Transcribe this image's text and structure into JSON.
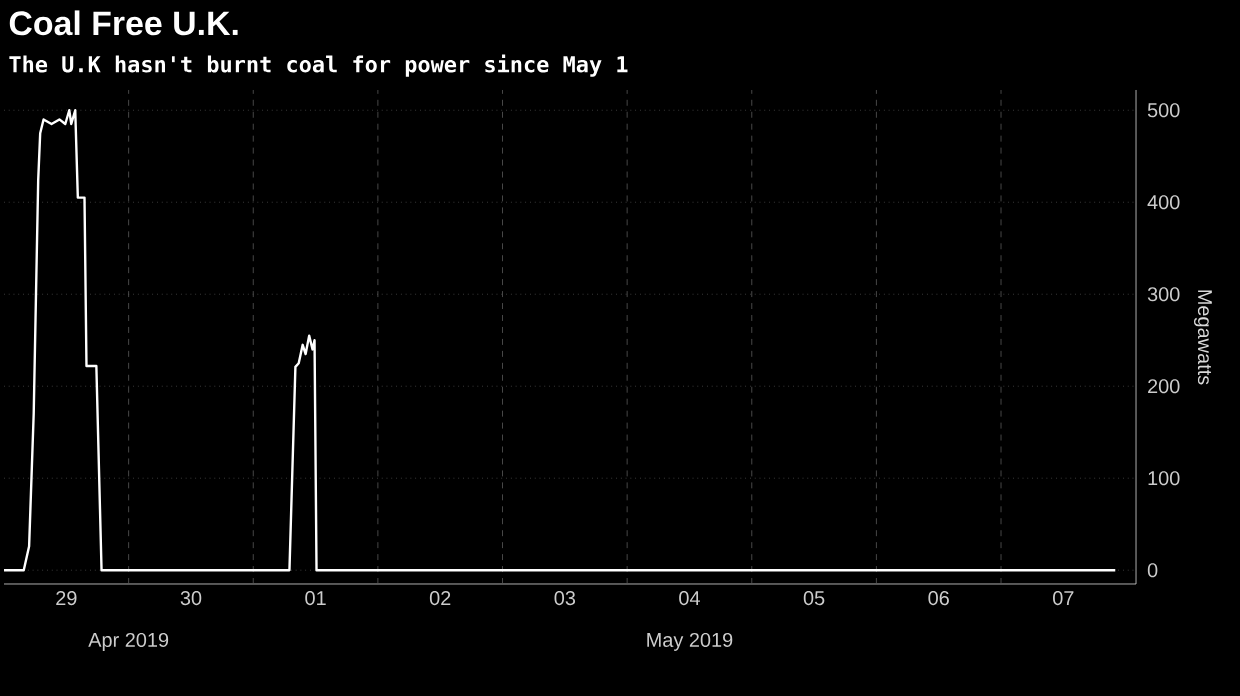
{
  "chart_data": {
    "type": "line",
    "title": "Coal Free U.K.",
    "subtitle": "The U.K hasn't burnt coal for power since May 1",
    "ylabel": "Megawatts",
    "x": [
      "2019-04-29T00:00",
      "2019-04-29T03:48",
      "2019-04-29T04:50",
      "2019-04-29T05:43",
      "2019-04-29T06:35",
      "2019-04-29T06:58",
      "2019-04-29T07:37",
      "2019-04-29T09:09",
      "2019-04-29T10:40",
      "2019-04-29T11:48",
      "2019-04-29T12:34",
      "2019-04-29T12:57",
      "2019-04-29T13:43",
      "2019-04-29T14:13",
      "2019-04-29T15:30",
      "2019-04-29T15:53",
      "2019-04-29T17:47",
      "2019-04-29T18:47",
      "2019-05-01T06:58",
      "2019-05-01T08:07",
      "2019-05-01T08:45",
      "2019-05-01T09:31",
      "2019-05-01T10:05",
      "2019-05-01T10:46",
      "2019-05-01T11:25",
      "2019-05-01T11:48",
      "2019-05-01T12:11",
      "2019-05-07T22:00"
    ],
    "series": [
      {
        "color": "#ffffff",
        "values": [
          0,
          0,
          26,
          170,
          424,
          475,
          490,
          485,
          490,
          485,
          500,
          485,
          500,
          405,
          405,
          222,
          222,
          0,
          0,
          221,
          225,
          245,
          235,
          255,
          240,
          250,
          0,
          0
        ]
      }
    ],
    "xlim": [
      "2019-04-29T00:00",
      "2019-05-08T02:00"
    ],
    "xticks": [
      {
        "value": "2019-04-29T12:00",
        "label": "29"
      },
      {
        "value": "2019-04-30T12:00",
        "label": "30"
      },
      {
        "value": "2019-05-01T12:00",
        "label": "01"
      },
      {
        "value": "2019-05-02T12:00",
        "label": "02"
      },
      {
        "value": "2019-05-03T12:00",
        "label": "03"
      },
      {
        "value": "2019-05-04T12:00",
        "label": "04"
      },
      {
        "value": "2019-05-05T12:00",
        "label": "05"
      },
      {
        "value": "2019-05-06T12:00",
        "label": "06"
      },
      {
        "value": "2019-05-07T12:00",
        "label": "07"
      },
      {
        "value": "2019-04-30T00:00",
        "label": null
      },
      {
        "value": "2019-05-01T00:00",
        "label": null
      },
      {
        "value": "2019-05-02T00:00",
        "label": null
      },
      {
        "value": "2019-05-03T00:00",
        "label": null
      },
      {
        "value": "2019-05-04T00:00",
        "label": null
      },
      {
        "value": "2019-05-05T00:00",
        "label": null
      },
      {
        "value": "2019-05-06T00:00",
        "label": null
      },
      {
        "value": "2019-05-07T00:00",
        "label": null
      }
    ],
    "ylim": [
      -15,
      522
    ],
    "yticks": [
      0,
      100,
      200,
      300,
      400,
      500
    ],
    "grid": true,
    "line_style": "solid",
    "annotations": [
      "Apr 2019",
      "May 2019"
    ]
  }
}
